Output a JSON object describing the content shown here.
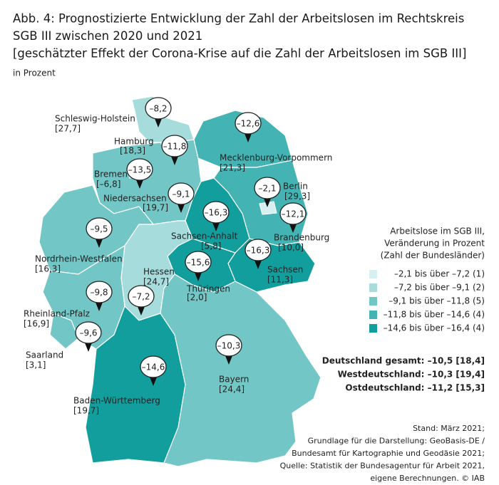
{
  "header": {
    "title_lines": [
      "Abb. 4: Prognostizierte Entwicklung der Zahl der Arbeitslosen im Rechtskreis",
      "SGB III zwischen 2020 und 2021",
      "[geschätzter Effekt der Corona-Krise auf die Zahl der Arbeitslosen im SGB III]"
    ],
    "subtitle": "in Prozent"
  },
  "states": [
    {
      "name": "Schleswig-Holstein",
      "change": "–8,2",
      "share": "[27,7]",
      "color": "#a6dcdc"
    },
    {
      "name": "Hamburg",
      "change": "–11,8",
      "share": "[18,3]",
      "color": "#43b3b3"
    },
    {
      "name": "Bremen",
      "change": "–13,5",
      "share": "[–6,8]",
      "color": "#43b3b3"
    },
    {
      "name": "Niedersachsen",
      "change": "–9,1",
      "share": "[19,7]",
      "color": "#72c6c6"
    },
    {
      "name": "Mecklenburg-Vorpommern",
      "change": "–12,6",
      "share": "[21,3]",
      "color": "#43b3b3"
    },
    {
      "name": "Berlin",
      "change": "–2,1",
      "share": "[29,3]",
      "color": "#d6eff0"
    },
    {
      "name": "Brandenburg",
      "change": "–12,1",
      "share": "[10,0]",
      "color": "#43b3b3"
    },
    {
      "name": "Sachsen-Anhalt",
      "change": "–16,3",
      "share": "[5,8]",
      "color": "#139e9e"
    },
    {
      "name": "Sachsen",
      "change": "–16,3",
      "share": "[11,3]",
      "color": "#139e9e"
    },
    {
      "name": "Thüringen",
      "change": "–15,6",
      "share": "[2,0]",
      "color": "#139e9e"
    },
    {
      "name": "Hessen",
      "change": "–7,2",
      "share": "[24,7]",
      "color": "#a6dcdc"
    },
    {
      "name": "Nordrhein-Westfalen",
      "change": "–9,5",
      "share": "[16,3]",
      "color": "#72c6c6"
    },
    {
      "name": "Rheinland-Pfalz",
      "change": "–9,8",
      "share": "[16,9]",
      "color": "#72c6c6"
    },
    {
      "name": "Saarland",
      "change": "–9,6",
      "share": "[3,1]",
      "color": "#72c6c6"
    },
    {
      "name": "Baden-Württemberg",
      "change": "–14,6",
      "share": "[19,7]",
      "color": "#139e9e"
    },
    {
      "name": "Bayern",
      "change": "–10,3",
      "share": "[24,4]",
      "color": "#72c6c6"
    }
  ],
  "legend": {
    "title_lines": [
      "Arbeitslose im SGB III,",
      "Veränderung in Prozent",
      "(Zahl der Bundesländer)"
    ],
    "entries": [
      {
        "label": "–2,1 bis über –7,2 (1)",
        "color": "#d6eff0"
      },
      {
        "label": "–7,2 bis über –9,1 (2)",
        "color": "#a6dcdc"
      },
      {
        "label": "–9,1 bis über –11,8 (5)",
        "color": "#72c6c6"
      },
      {
        "label": "–11,8 bis über –14,6 (4)",
        "color": "#43b3b3"
      },
      {
        "label": "–14,6 bis über –16,4 (4)",
        "color": "#139e9e"
      }
    ]
  },
  "totals": [
    "Deutschland gesamt: –10,5 [18,4]",
    "Westdeutschland: –10,3 [19,4]",
    "Ostdeutschland: –11,2 [15,3]"
  ],
  "source_lines": [
    "Stand: März 2021;",
    "Grundlage für die Darstellung: GeoBasis-DE /",
    "Bundesamt für Kartographie und Geodäsie 2021;",
    "Quelle: Statistik der Bundesagentur für Arbeit 2021,",
    "eigene Berechnungen. © IAB"
  ]
}
